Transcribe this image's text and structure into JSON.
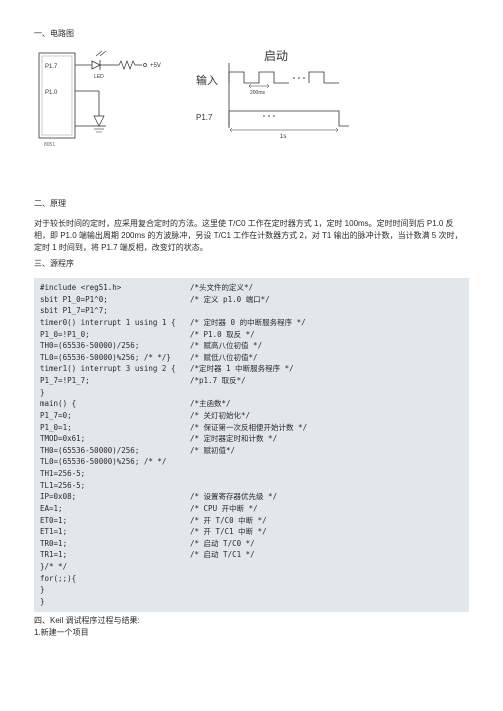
{
  "sections": {
    "s1_title": "一、电路图",
    "s2_title": "二、原理",
    "s2_para": "对于较长时间的定时，应采用复合定时的方法。这里使 T/C0 工作在定时器方式 1，定时 100ms。定时时间到后 P1.0 反相，即 P1.0 端输出周期 200ms 的方波脉冲，另设 T/C1 工作在计数器方式 2，对 T1 输出的脉冲计数，当计数满 5 次时，定时 1 时间到，将 P1.7 端反相，改变灯的状态。",
    "s3_title": "三、源程序",
    "s4": "四、Keil 调试程序过程与结果:",
    "s4_1": "1.新建一个项目"
  },
  "diagram": {
    "left": {
      "P1_7": "P1.7",
      "P1_0": "P1.0",
      "LED": "LED",
      "5V": "+5V",
      "chip": "8051"
    },
    "right": {
      "start": "启动",
      "input": "输入",
      "t200ms": "200ms",
      "P1_7": "P1.7",
      "t1s": "1s"
    }
  },
  "code": [
    {
      "l": "#include <reg51.h>",
      "c": "/*头文件的定义*/"
    },
    {
      "l": "sbit P1_0=P1^0;",
      "c": "/* 定义 p1.0 端口*/"
    },
    {
      "l": "sbit P1_7=P1^7;",
      "c": ""
    },
    {
      "l": "timer0() interrupt 1 using 1 {",
      "c": "/* 定时器 0 的中断服务程序 */"
    },
    {
      "l": "P1_0=!P1_0;",
      "c": "/* P1.0 取反 */"
    },
    {
      "l": "TH0=(65536-50000)/256;",
      "c": "/* 赋高八位初值 */"
    },
    {
      "l": "TL0=(65536-50000)%256; /* */}",
      "c": "/* 赋低八位初值*/"
    },
    {
      "l": "",
      "c": ""
    },
    {
      "l": "timer1() interrupt 3 using 2 {",
      "c": "/*定时器 1 中断服务程序 */"
    },
    {
      "l": "P1_7=!P1_7;",
      "c": "/*p1.7 取反*/"
    },
    {
      "l": "}",
      "c": ""
    },
    {
      "l": "main() {",
      "c": "/*主函数*/"
    },
    {
      "l": "P1_7=0;",
      "c": "/* 关灯初始化*/"
    },
    {
      "l": "P1_0=1;",
      "c": "/* 保证第一次反相便开始计数 */"
    },
    {
      "l": "TMOD=0x61;",
      "c": "/* 定时器定时和计数 */"
    },
    {
      "l": "TH0=(65536-50000)/256;",
      "c": "/* 赋初值*/"
    },
    {
      "l": "TL0=(65536-50000)%256; /* */",
      "c": ""
    },
    {
      "l": "TH1=256-5;",
      "c": ""
    },
    {
      "l": "TL1=256-5;",
      "c": ""
    },
    {
      "l": "IP=0x08;",
      "c": "/* 设置寄存器优先级 */"
    },
    {
      "l": "EA=1;",
      "c": "/* CPU 开中断 */"
    },
    {
      "l": "ET0=1;",
      "c": "/* 开 T/C0 中断 */"
    },
    {
      "l": "ET1=1;",
      "c": "/* 开 T/C1 中断 */"
    },
    {
      "l": "TR0=1;",
      "c": "/* 启动 T/C0 */"
    },
    {
      "l": "TR1=1;",
      "c": "/* 启动 T/C1 */"
    },
    {
      "l": "}/* */",
      "c": ""
    },
    {
      "l": "for(;;){",
      "c": ""
    },
    {
      "l": "}",
      "c": ""
    },
    {
      "l": "}",
      "c": ""
    }
  ]
}
